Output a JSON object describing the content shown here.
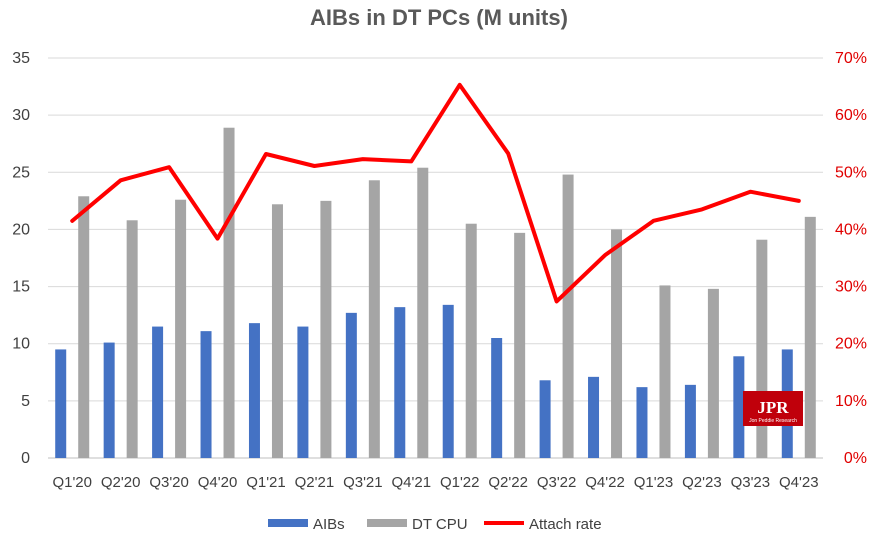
{
  "chart_data": {
    "type": "bar",
    "title": "AIBs in DT PCs (M units)",
    "categories": [
      "Q1'20",
      "Q2'20",
      "Q3'20",
      "Q4'20",
      "Q1'21",
      "Q2'21",
      "Q3'21",
      "Q4'21",
      "Q1'22",
      "Q2'22",
      "Q3'22",
      "Q4'22",
      "Q1'23",
      "Q2'23",
      "Q3'23",
      "Q4'23"
    ],
    "series": [
      {
        "name": "AIBs",
        "type": "bar",
        "axis": "left",
        "color": "#4472c4",
        "values": [
          9.5,
          10.1,
          11.5,
          11.1,
          11.8,
          11.5,
          12.7,
          13.2,
          13.4,
          10.5,
          6.8,
          7.1,
          6.2,
          6.4,
          8.9,
          9.5
        ]
      },
      {
        "name": "DT CPU",
        "type": "bar",
        "axis": "left",
        "color": "#a5a5a5",
        "values": [
          22.9,
          20.8,
          22.6,
          28.9,
          22.2,
          22.5,
          24.3,
          25.4,
          20.5,
          19.7,
          24.8,
          20.0,
          15.1,
          14.8,
          19.1,
          21.1
        ]
      },
      {
        "name": "Attach rate",
        "type": "line",
        "axis": "right",
        "color": "#ff0000",
        "values": [
          41.5,
          48.6,
          50.9,
          38.4,
          53.2,
          51.1,
          52.3,
          51.9,
          65.3,
          53.3,
          27.4,
          35.5,
          41.5,
          43.5,
          46.6,
          45.0
        ]
      }
    ],
    "ylim_left": [
      0,
      35
    ],
    "yticks_left": [
      "0",
      "5",
      "10",
      "15",
      "20",
      "25",
      "30",
      "35"
    ],
    "ylim_right": [
      0,
      70
    ],
    "yticks_right": [
      "0%",
      "10%",
      "20%",
      "30%",
      "40%",
      "50%",
      "60%",
      "70%"
    ],
    "grid": true,
    "legend_position": "bottom",
    "watermark": {
      "text": "JPR",
      "subtext": "Jon Peddie Research",
      "color": "#c0000b"
    }
  }
}
